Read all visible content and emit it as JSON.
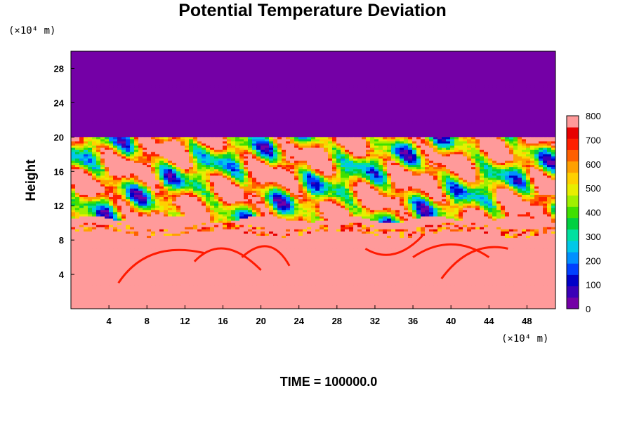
{
  "chart_data": {
    "type": "heatmap",
    "title": "Potential Temperature Deviation",
    "ylabel": "Height",
    "y_unit_label": "(×10⁴ m)",
    "x_unit_label": "(×10⁴ m)",
    "xlim": [
      0,
      51
    ],
    "ylim": [
      0,
      30
    ],
    "x_ticks": [
      4,
      8,
      12,
      16,
      20,
      24,
      28,
      32,
      36,
      40,
      44,
      48
    ],
    "y_ticks": [
      4,
      8,
      12,
      16,
      20,
      24,
      28
    ],
    "colorbar": {
      "min": 0,
      "max": 800,
      "ticks": [
        0,
        100,
        200,
        300,
        400,
        500,
        600,
        700,
        800
      ]
    },
    "time_label": "TIME = 100000.0",
    "field_summary": [
      {
        "y_range": [
          20,
          30
        ],
        "value": 0,
        "description": "uniform lowest value above height 20"
      },
      {
        "y_range": [
          11,
          20
        ],
        "value": "mixed",
        "description": "turbulent layer mixing 0 to 800"
      },
      {
        "y_range": [
          0,
          11
        ],
        "value": 780,
        "description": "mostly near-maximum with red arc features"
      }
    ],
    "colors": {
      "low": "#7400a6",
      "high": "#ff9a9a",
      "palette": [
        "#7400a6",
        "#3a00b8",
        "#0000c8",
        "#0040ff",
        "#0090ff",
        "#00c8e8",
        "#00e0a0",
        "#00d040",
        "#40e000",
        "#a0f000",
        "#e8ee00",
        "#ffd000",
        "#ffa000",
        "#ff6000",
        "#ff2000",
        "#e80000",
        "#ff9a9a"
      ]
    }
  }
}
